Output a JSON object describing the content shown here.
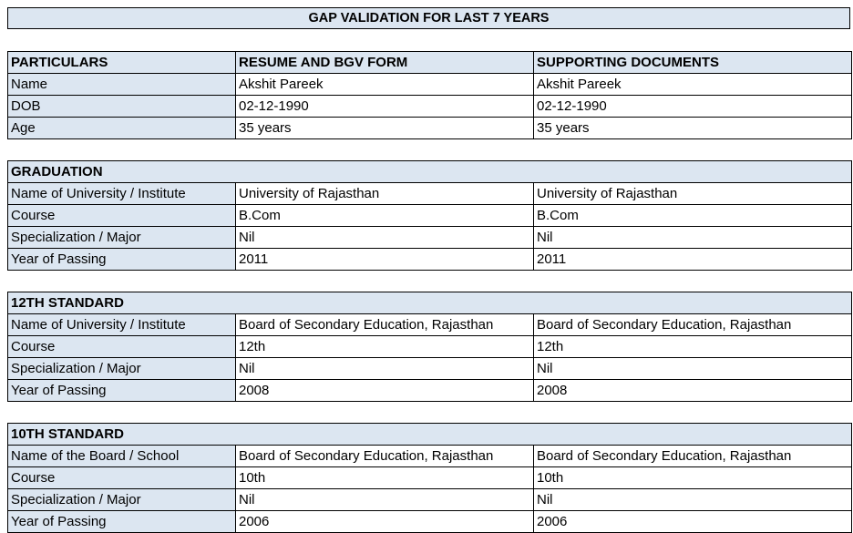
{
  "title": "GAP VALIDATION FOR LAST 7 YEARS",
  "personal": {
    "headers": [
      "PARTICULARS",
      "RESUME AND BGV FORM",
      "SUPPORTING DOCUMENTS"
    ],
    "rows": [
      [
        "Name",
        "Akshit Pareek",
        "Akshit Pareek"
      ],
      [
        "DOB",
        "02-12-1990",
        "02-12-1990"
      ],
      [
        "Age",
        "35 years",
        "35 years"
      ]
    ]
  },
  "graduation": {
    "heading": "GRADUATION",
    "rows": [
      [
        "Name of University / Institute",
        "University of Rajasthan",
        "University of Rajasthan"
      ],
      [
        "Course",
        "B.Com",
        "B.Com"
      ],
      [
        "Specialization / Major",
        "Nil",
        "Nil"
      ],
      [
        "Year of Passing",
        "2011",
        "2011"
      ]
    ]
  },
  "twelfth": {
    "heading": "12TH STANDARD",
    "rows": [
      [
        "Name of University / Institute",
        "Board of Secondary Education, Rajasthan",
        "Board of Secondary Education, Rajasthan"
      ],
      [
        "Course",
        "12th",
        "12th"
      ],
      [
        "Specialization / Major",
        "Nil",
        "Nil"
      ],
      [
        "Year of Passing",
        "2008",
        "2008"
      ]
    ]
  },
  "tenth": {
    "heading": "10TH STANDARD",
    "rows": [
      [
        "Name of the Board / School",
        "Board of Secondary Education, Rajasthan",
        "Board of Secondary Education, Rajasthan"
      ],
      [
        "Course",
        "10th",
        "10th"
      ],
      [
        "Specialization / Major",
        "Nil",
        "Nil"
      ],
      [
        "Year of Passing",
        "2006",
        "2006"
      ]
    ]
  }
}
